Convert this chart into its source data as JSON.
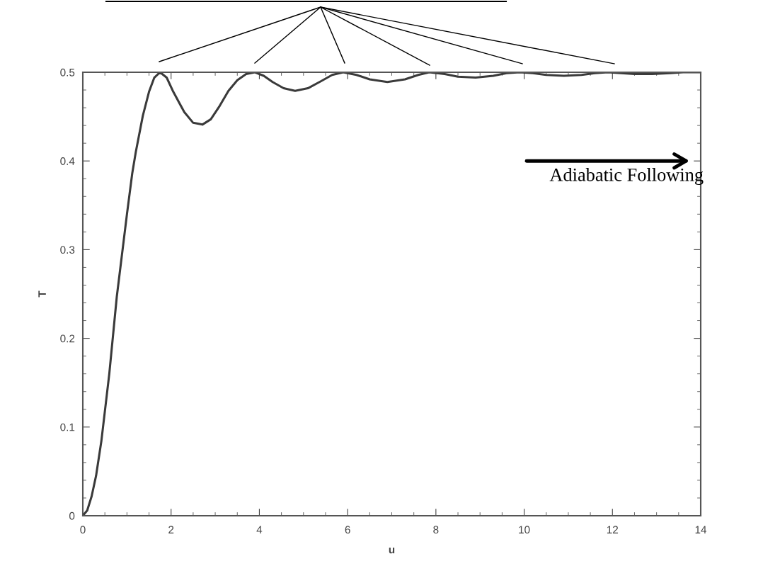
{
  "chart_data": {
    "type": "line",
    "xlabel": "u",
    "ylabel": "T",
    "x": [
      0,
      0.1,
      0.2,
      0.3,
      0.42,
      0.6,
      0.77,
      1.0,
      1.12,
      1.2,
      1.36,
      1.5,
      1.62,
      1.75,
      1.9,
      2.05,
      2.3,
      2.5,
      2.71,
      2.9,
      3.1,
      3.3,
      3.5,
      3.7,
      3.9,
      4.1,
      4.3,
      4.55,
      4.81,
      5.1,
      5.4,
      5.65,
      5.9,
      6.2,
      6.5,
      6.9,
      7.3,
      7.6,
      7.85,
      8.2,
      8.5,
      8.9,
      9.3,
      9.6,
      9.9,
      10.2,
      10.5,
      10.9,
      11.3,
      11.6,
      11.9,
      12.2,
      12.5,
      12.9,
      13.3,
      13.6,
      14
    ],
    "series": [
      {
        "color": "#3a3a3a",
        "values": [
          0,
          0.006,
          0.022,
          0.045,
          0.084,
          0.16,
          0.247,
          0.34,
          0.386,
          0.41,
          0.451,
          0.478,
          0.494,
          0.5,
          0.494,
          0.478,
          0.455,
          0.443,
          0.441,
          0.447,
          0.462,
          0.479,
          0.491,
          0.498,
          0.5,
          0.496,
          0.489,
          0.482,
          0.479,
          0.482,
          0.49,
          0.497,
          0.5,
          0.497,
          0.492,
          0.489,
          0.492,
          0.497,
          0.5,
          0.498,
          0.495,
          0.494,
          0.496,
          0.499,
          0.5,
          0.499,
          0.497,
          0.496,
          0.497,
          0.499,
          0.5,
          0.499,
          0.498,
          0.498,
          0.499,
          0.5,
          0.5
        ]
      }
    ],
    "xlim": [
      0,
      14
    ],
    "ylim": [
      0,
      0.5
    ],
    "xticks": [
      0,
      2,
      4,
      6,
      8,
      10,
      12,
      14
    ],
    "yticks": [
      0,
      0.1,
      0.2,
      0.3,
      0.4,
      0.5
    ],
    "grid": false,
    "legend": false,
    "marker": "none",
    "line_style": "solid",
    "annotations": [
      "Adiabatic Following"
    ]
  }
}
